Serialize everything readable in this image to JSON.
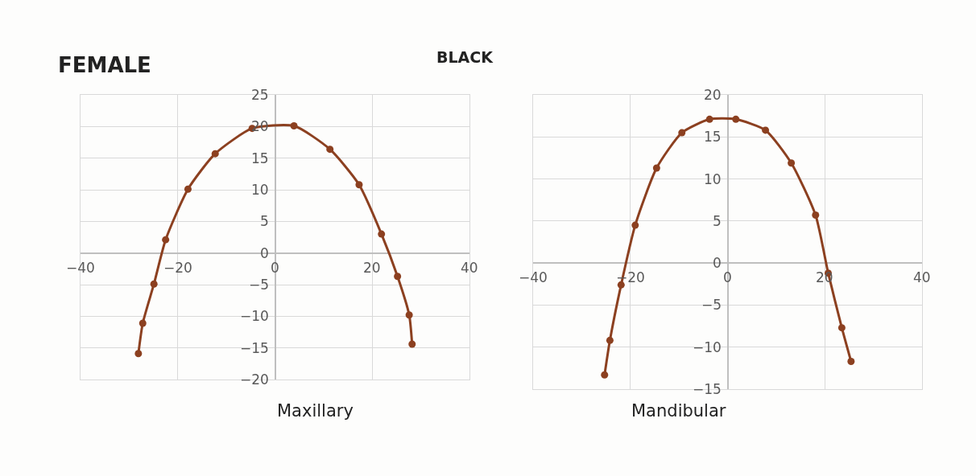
{
  "chart_data": [
    {
      "type": "line",
      "title": "FEMALE",
      "subtitle": "BLACK",
      "xlabel": "Maxillary",
      "grid": true,
      "marker": "circle",
      "line_style": "solid",
      "series": [
        {
          "color": "#8c4020",
          "x": [
            -28.1,
            -27.2,
            -24.9,
            -22.5,
            -17.9,
            -12.3,
            -4.7,
            3.9,
            11.3,
            17.3,
            21.9,
            25.2,
            27.6,
            28.2
          ],
          "values": [
            -15.9,
            -11.1,
            -4.9,
            2.1,
            10.1,
            15.7,
            19.7,
            20.1,
            16.4,
            10.8,
            3.0,
            -3.7,
            -9.8,
            -14.4
          ]
        }
      ],
      "xlim": [
        -40,
        40
      ],
      "xticks": [
        -40,
        -20,
        0,
        20,
        40
      ],
      "ylim": [
        -20,
        25
      ],
      "yticks": [
        -20,
        -15,
        -10,
        -5,
        0,
        5,
        10,
        15,
        20,
        25
      ]
    },
    {
      "type": "line",
      "xlabel": "Mandibular",
      "grid": true,
      "marker": "circle",
      "line_style": "solid",
      "series": [
        {
          "color": "#8c4020",
          "x": [
            -25.3,
            -24.2,
            -21.9,
            -19.0,
            -14.6,
            -9.4,
            -3.7,
            1.7,
            7.8,
            13.1,
            18.1,
            20.7,
            23.5,
            25.4
          ],
          "values": [
            -13.3,
            -9.2,
            -2.6,
            4.5,
            11.3,
            15.5,
            17.1,
            17.1,
            15.8,
            11.9,
            5.7,
            -1.2,
            -7.7,
            -11.7
          ]
        }
      ],
      "xlim": [
        -40,
        40
      ],
      "xticks": [
        -40,
        -20,
        0,
        20,
        40
      ],
      "ylim": [
        -15,
        20
      ],
      "yticks": [
        -15,
        -10,
        -5,
        0,
        5,
        10,
        15,
        20
      ]
    }
  ]
}
